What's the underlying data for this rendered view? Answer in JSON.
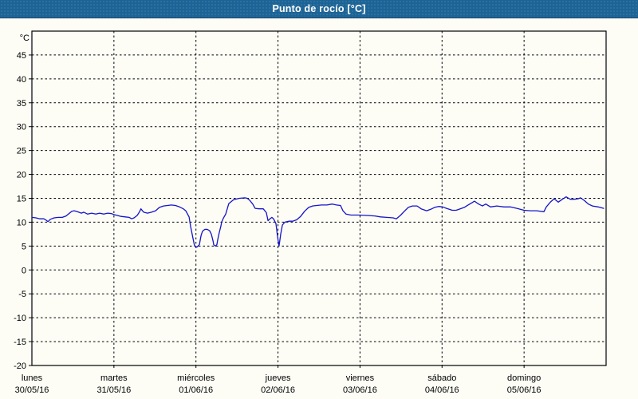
{
  "window": {
    "title": "Punto de rocío [°C]"
  },
  "colors": {
    "titlebar": "#1d6496",
    "title_text": "#ffffff",
    "background": "#fdfdf6",
    "plot_border": "#000000",
    "grid": "#000000",
    "series_line": "#1414c8",
    "label_text": "#000000"
  },
  "chart_data": {
    "type": "line",
    "title": "Punto de rocío [°C]",
    "ylabel": "°C",
    "xlabel": "",
    "ylim": [
      -20,
      50
    ],
    "ytick_step": 5,
    "ytick_labels": [
      45,
      40,
      35,
      30,
      25,
      20,
      15,
      10,
      5,
      0,
      -5,
      -10,
      -15,
      -20
    ],
    "grid": "dotted",
    "legend_position": "none",
    "x_axis_days": [
      {
        "name": "lunes",
        "date": "30/05/16"
      },
      {
        "name": "martes",
        "date": "31/05/16"
      },
      {
        "name": "miércoles",
        "date": "01/06/16"
      },
      {
        "name": "jueves",
        "date": "02/06/16"
      },
      {
        "name": "viernes",
        "date": "03/06/16"
      },
      {
        "name": "sábado",
        "date": "04/06/16"
      },
      {
        "name": "domingo",
        "date": "05/06/16"
      }
    ],
    "xlim_hours": [
      0,
      168
    ],
    "series": [
      {
        "name": "Punto de rocío",
        "unit": "°C",
        "color": "#1414c8",
        "points_hours_value": [
          [
            0,
            11.0
          ],
          [
            1.2,
            10.9
          ],
          [
            2.3,
            10.7
          ],
          [
            3.5,
            10.7
          ],
          [
            4.2,
            10.4
          ],
          [
            4.7,
            10.1
          ],
          [
            5.4,
            10.6
          ],
          [
            6.5,
            10.9
          ],
          [
            7.7,
            11.0
          ],
          [
            8.9,
            11.0
          ],
          [
            10.0,
            11.3
          ],
          [
            11.0,
            11.9
          ],
          [
            11.7,
            12.3
          ],
          [
            12.4,
            12.4
          ],
          [
            13.3,
            12.2
          ],
          [
            14.5,
            11.9
          ],
          [
            15.2,
            12.1
          ],
          [
            16.3,
            11.7
          ],
          [
            17.5,
            11.9
          ],
          [
            18.7,
            11.7
          ],
          [
            19.8,
            11.9
          ],
          [
            21.0,
            11.7
          ],
          [
            22.2,
            11.9
          ],
          [
            23.3,
            11.8
          ],
          [
            24.0,
            11.6
          ],
          [
            25.0,
            11.4
          ],
          [
            26.1,
            11.2
          ],
          [
            27.3,
            11.1
          ],
          [
            28.5,
            11.0
          ],
          [
            29.2,
            10.7
          ],
          [
            29.9,
            10.9
          ],
          [
            30.8,
            11.4
          ],
          [
            31.5,
            12.2
          ],
          [
            31.9,
            12.8
          ],
          [
            32.7,
            12.1
          ],
          [
            33.8,
            11.9
          ],
          [
            35.0,
            12.1
          ],
          [
            36.2,
            12.4
          ],
          [
            37.3,
            13.1
          ],
          [
            38.5,
            13.4
          ],
          [
            39.7,
            13.5
          ],
          [
            40.8,
            13.6
          ],
          [
            42.0,
            13.5
          ],
          [
            43.2,
            13.2
          ],
          [
            44.3,
            12.8
          ],
          [
            45.0,
            12.4
          ],
          [
            46.0,
            11.1
          ],
          [
            46.4,
            9.2
          ],
          [
            47.1,
            6.7
          ],
          [
            47.6,
            5.0
          ],
          [
            48.3,
            4.8
          ],
          [
            49.0,
            5.3
          ],
          [
            49.5,
            7.2
          ],
          [
            49.9,
            8.1
          ],
          [
            50.6,
            8.5
          ],
          [
            51.3,
            8.5
          ],
          [
            52.0,
            8.2
          ],
          [
            52.5,
            7.5
          ],
          [
            53.0,
            6.1
          ],
          [
            53.2,
            5.3
          ],
          [
            53.7,
            5.0
          ],
          [
            54.1,
            5.3
          ],
          [
            54.4,
            6.4
          ],
          [
            54.8,
            7.8
          ],
          [
            55.3,
            9.2
          ],
          [
            55.5,
            10.0
          ],
          [
            56.0,
            10.8
          ],
          [
            56.7,
            11.7
          ],
          [
            57.6,
            13.9
          ],
          [
            59.0,
            14.7
          ],
          [
            60.7,
            15.0
          ],
          [
            62.3,
            15.1
          ],
          [
            63.0,
            15.0
          ],
          [
            63.7,
            14.6
          ],
          [
            64.6,
            13.8
          ],
          [
            65.3,
            12.9
          ],
          [
            66.5,
            12.8
          ],
          [
            67.7,
            12.8
          ],
          [
            68.6,
            12.0
          ],
          [
            69.1,
            10.3
          ],
          [
            69.5,
            10.6
          ],
          [
            70.2,
            11.0
          ],
          [
            70.7,
            10.7
          ],
          [
            71.4,
            9.7
          ],
          [
            71.9,
            6.9
          ],
          [
            72.3,
            5.0
          ],
          [
            72.8,
            7.5
          ],
          [
            73.3,
            9.4
          ],
          [
            74.0,
            10.0
          ],
          [
            75.1,
            10.2
          ],
          [
            76.3,
            10.2
          ],
          [
            77.5,
            10.5
          ],
          [
            78.6,
            11.2
          ],
          [
            79.8,
            12.3
          ],
          [
            81.0,
            13.1
          ],
          [
            82.1,
            13.4
          ],
          [
            83.3,
            13.5
          ],
          [
            84.7,
            13.6
          ],
          [
            86.3,
            13.6
          ],
          [
            87.9,
            13.8
          ],
          [
            89.1,
            13.6
          ],
          [
            90.3,
            13.5
          ],
          [
            91.0,
            12.4
          ],
          [
            91.9,
            11.7
          ],
          [
            93.3,
            11.5
          ],
          [
            95.7,
            11.5
          ],
          [
            98.0,
            11.4
          ],
          [
            100.3,
            11.3
          ],
          [
            102.0,
            11.1
          ],
          [
            103.8,
            11.0
          ],
          [
            105.7,
            10.9
          ],
          [
            106.6,
            10.7
          ],
          [
            107.8,
            11.4
          ],
          [
            109.0,
            12.3
          ],
          [
            110.1,
            13.1
          ],
          [
            111.3,
            13.4
          ],
          [
            112.7,
            13.4
          ],
          [
            113.9,
            12.8
          ],
          [
            115.5,
            12.4
          ],
          [
            116.7,
            12.7
          ],
          [
            117.8,
            13.1
          ],
          [
            119.0,
            13.3
          ],
          [
            120.2,
            13.2
          ],
          [
            121.3,
            12.9
          ],
          [
            123.0,
            12.5
          ],
          [
            124.1,
            12.5
          ],
          [
            125.3,
            12.8
          ],
          [
            126.5,
            13.1
          ],
          [
            127.6,
            13.6
          ],
          [
            128.8,
            14.1
          ],
          [
            129.5,
            14.4
          ],
          [
            130.7,
            13.8
          ],
          [
            131.8,
            13.4
          ],
          [
            132.8,
            13.8
          ],
          [
            134.2,
            13.2
          ],
          [
            136.0,
            13.4
          ],
          [
            138.1,
            13.2
          ],
          [
            140.0,
            13.2
          ],
          [
            141.9,
            12.9
          ],
          [
            144.0,
            12.5
          ],
          [
            145.8,
            12.4
          ],
          [
            147.7,
            12.4
          ],
          [
            149.8,
            12.2
          ],
          [
            150.5,
            13.2
          ],
          [
            151.7,
            14.2
          ],
          [
            152.8,
            14.9
          ],
          [
            154.0,
            14.2
          ],
          [
            155.2,
            14.8
          ],
          [
            156.3,
            15.3
          ],
          [
            157.5,
            14.8
          ],
          [
            158.7,
            14.8
          ],
          [
            159.8,
            14.9
          ],
          [
            160.5,
            15.1
          ],
          [
            161.7,
            14.5
          ],
          [
            162.8,
            13.8
          ],
          [
            164.0,
            13.4
          ],
          [
            165.7,
            13.2
          ],
          [
            167.3,
            12.9
          ]
        ]
      }
    ]
  }
}
